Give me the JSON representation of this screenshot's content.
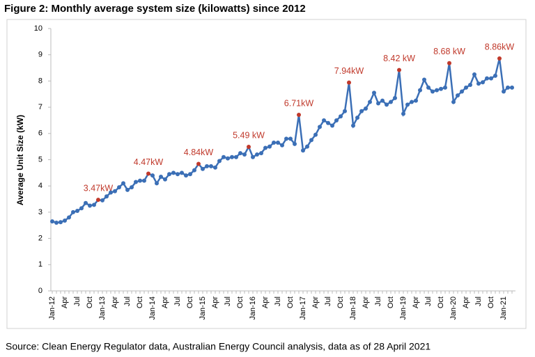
{
  "chart_data": {
    "type": "line",
    "title": "Figure 2: Monthly average system size (kilowatts) since 2012",
    "y_label": "Average Unit Size (kW)",
    "source": "Source: Clean Energy Regulator data, Australian Energy Council analysis, data as of 28 April 2021",
    "categories": [
      "Jan-12",
      null,
      null,
      "Apr",
      null,
      null,
      "Jul",
      null,
      null,
      "Oct",
      null,
      null,
      "Jan-13",
      null,
      null,
      "Apr",
      null,
      null,
      "Jul",
      null,
      null,
      "Oct",
      null,
      null,
      "Jan-14",
      null,
      null,
      "Apr",
      null,
      null,
      "Jul",
      null,
      null,
      "Oct",
      null,
      null,
      "Jan-15",
      null,
      null,
      "Apr",
      null,
      null,
      "Jul",
      null,
      null,
      "Oct",
      null,
      null,
      "Jan-16",
      null,
      null,
      "Apr",
      null,
      null,
      "Jul",
      null,
      null,
      "Oct",
      null,
      null,
      "Jan-17",
      null,
      null,
      "Apr",
      null,
      null,
      "Jul",
      null,
      null,
      "Oct",
      null,
      null,
      "Jan-18",
      null,
      null,
      "Apr",
      null,
      null,
      "Jul",
      null,
      null,
      "Oct",
      null,
      null,
      "Jan-19",
      null,
      null,
      "Apr",
      null,
      null,
      "Jul",
      null,
      null,
      "Oct",
      null,
      null,
      "Jan-20",
      null,
      null,
      "Apr",
      null,
      null,
      "Jul",
      null,
      null,
      "Oct",
      null,
      null,
      "Jan-21",
      null,
      null
    ],
    "values": [
      2.65,
      2.6,
      2.62,
      2.68,
      2.8,
      3.0,
      3.05,
      3.15,
      3.35,
      3.25,
      3.28,
      3.47,
      3.45,
      3.6,
      3.75,
      3.8,
      3.95,
      4.1,
      3.85,
      3.95,
      4.15,
      4.2,
      4.2,
      4.47,
      4.4,
      4.1,
      4.35,
      4.25,
      4.45,
      4.5,
      4.45,
      4.5,
      4.4,
      4.45,
      4.6,
      4.84,
      4.65,
      4.75,
      4.75,
      4.7,
      4.95,
      5.1,
      5.05,
      5.1,
      5.1,
      5.25,
      5.2,
      5.49,
      5.1,
      5.2,
      5.25,
      5.45,
      5.5,
      5.65,
      5.65,
      5.55,
      5.8,
      5.8,
      5.6,
      6.71,
      5.35,
      5.5,
      5.75,
      5.95,
      6.25,
      6.5,
      6.4,
      6.3,
      6.5,
      6.65,
      6.85,
      7.94,
      6.3,
      6.6,
      6.85,
      6.95,
      7.2,
      7.55,
      7.15,
      7.25,
      7.1,
      7.2,
      7.35,
      8.42,
      6.75,
      7.1,
      7.2,
      7.25,
      7.65,
      8.05,
      7.75,
      7.6,
      7.65,
      7.7,
      7.75,
      8.68,
      7.2,
      7.45,
      7.6,
      7.75,
      7.85,
      8.25,
      7.9,
      7.95,
      8.1,
      8.1,
      8.2,
      8.86,
      7.6,
      7.75,
      7.75
    ],
    "value_labels": [
      null,
      null,
      null,
      null,
      null,
      null,
      null,
      null,
      null,
      null,
      null,
      "3.47kW",
      null,
      null,
      null,
      null,
      null,
      null,
      null,
      null,
      null,
      null,
      null,
      "4.47kW",
      null,
      null,
      null,
      null,
      null,
      null,
      null,
      null,
      null,
      null,
      null,
      "4.84kW",
      null,
      null,
      null,
      null,
      null,
      null,
      null,
      null,
      null,
      null,
      null,
      "5.49 kW",
      null,
      null,
      null,
      null,
      null,
      null,
      null,
      null,
      null,
      null,
      null,
      "6.71kW",
      null,
      null,
      null,
      null,
      null,
      null,
      null,
      null,
      null,
      null,
      null,
      "7.94kW",
      null,
      null,
      null,
      null,
      null,
      null,
      null,
      null,
      null,
      null,
      null,
      "8.42 kW",
      null,
      null,
      null,
      null,
      null,
      null,
      null,
      null,
      null,
      null,
      null,
      "8.68 kW",
      null,
      null,
      null,
      null,
      null,
      null,
      null,
      null,
      null,
      null,
      null,
      "8.86kW",
      null,
      null,
      null
    ],
    "color": "#3b6fb6",
    "highlight_color": "#c0392b",
    "ylim": [
      0,
      10
    ],
    "yticks": [
      0,
      1,
      2,
      3,
      4,
      5,
      6,
      7,
      8,
      9,
      10
    ],
    "grid": false
  }
}
